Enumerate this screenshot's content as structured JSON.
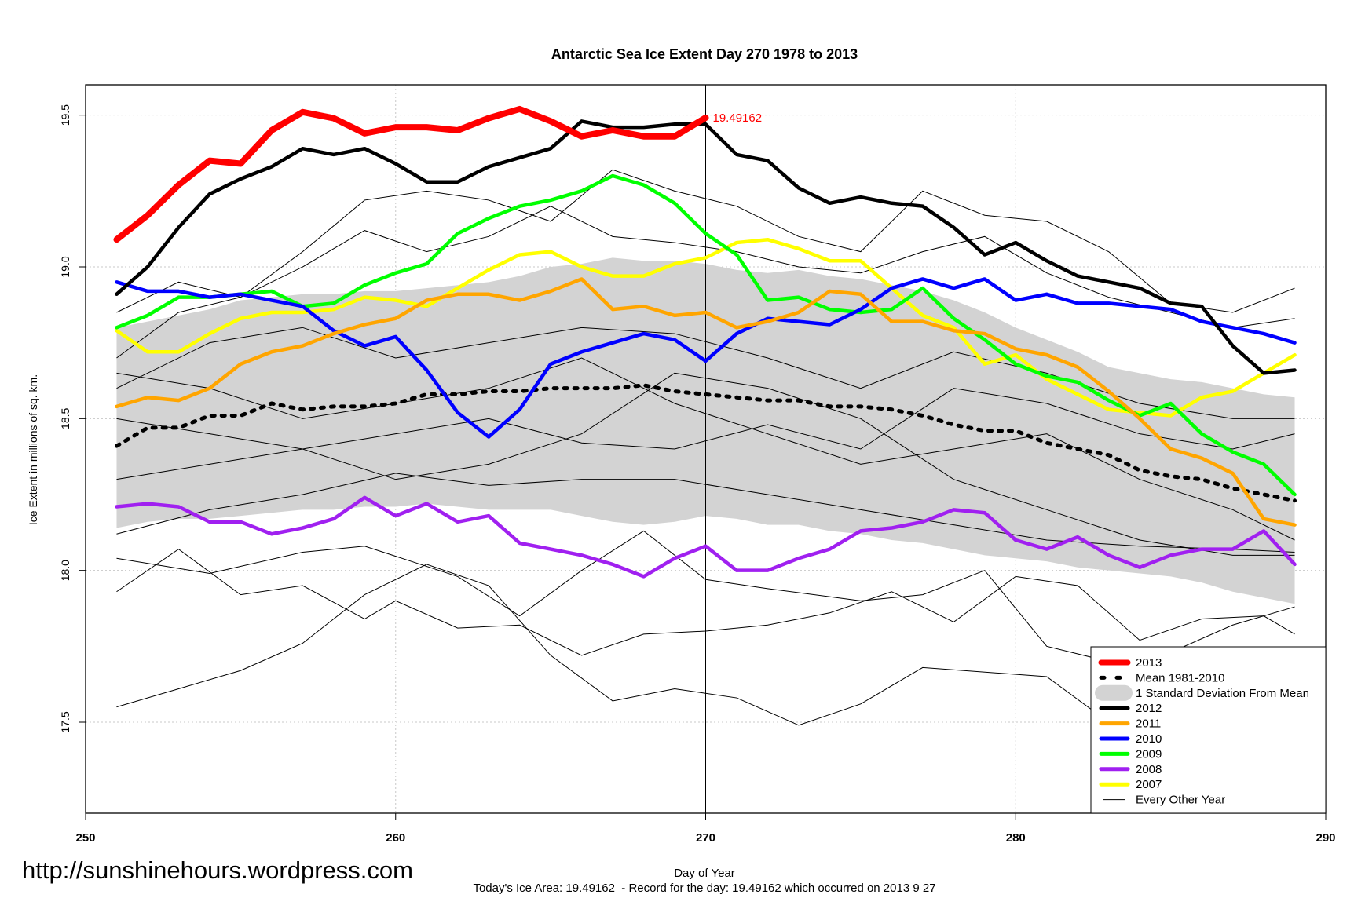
{
  "chart_data": {
    "type": "line",
    "title": "Antarctic Sea Ice Extent Day 270 1978 to 2013",
    "xlabel": "Day of Year",
    "ylabel": "Ice Extent in millions of sq. km.",
    "subtitle": "Today's Ice Area: 19.49162  - Record for the day: 19.49162 which occurred on 2013 9 27",
    "xlim": [
      250,
      290
    ],
    "ylim": [
      17.2,
      19.6
    ],
    "xticks": [
      250,
      260,
      270,
      280,
      290
    ],
    "xtick_labels": [
      "250",
      "260",
      "270",
      "280",
      "290"
    ],
    "yticks": [
      17.5,
      18.0,
      18.5,
      19.0,
      19.5
    ],
    "ytick_labels": [
      "17.5",
      "18.0",
      "18.5",
      "19.0",
      "19.5"
    ],
    "grid": true,
    "vertical_marker_day": 270,
    "annotation": {
      "x": 270,
      "y": 19.49162,
      "text": "19.49162",
      "color": "#ff0000"
    },
    "legend_placement": "bottom-right",
    "legend": [
      {
        "label": "2013",
        "color": "#ff0000",
        "style": "thick"
      },
      {
        "label": "Mean 1981-2010",
        "color": "#000000",
        "style": "dotted"
      },
      {
        "label": "1 Standard Deviation From Mean",
        "color": "#d3d3d3",
        "style": "band"
      },
      {
        "label": "2012",
        "color": "#000000",
        "style": "solid"
      },
      {
        "label": "2011",
        "color": "#ffa500",
        "style": "solid"
      },
      {
        "label": "2010",
        "color": "#0000ff",
        "style": "solid"
      },
      {
        "label": "2009",
        "color": "#00ff00",
        "style": "solid"
      },
      {
        "label": "2008",
        "color": "#a020f0",
        "style": "solid"
      },
      {
        "label": "2007",
        "color": "#ffff00",
        "style": "solid"
      },
      {
        "label": "Every Other Year",
        "color": "#000000",
        "style": "thin"
      }
    ],
    "days": [
      251,
      252,
      253,
      254,
      255,
      256,
      257,
      258,
      259,
      260,
      261,
      262,
      263,
      264,
      265,
      266,
      267,
      268,
      269,
      270,
      271,
      272,
      273,
      274,
      275,
      276,
      277,
      278,
      279,
      280,
      281,
      282,
      283,
      284,
      285,
      286,
      287,
      288,
      289
    ],
    "sd_band": {
      "upper": [
        18.8,
        18.82,
        18.84,
        18.86,
        18.89,
        18.9,
        18.91,
        18.91,
        18.92,
        18.92,
        18.93,
        18.94,
        18.95,
        18.97,
        19.0,
        19.01,
        19.03,
        19.02,
        19.02,
        19.01,
        18.99,
        18.98,
        18.99,
        18.97,
        18.96,
        18.94,
        18.92,
        18.89,
        18.85,
        18.8,
        18.76,
        18.72,
        18.67,
        18.65,
        18.63,
        18.62,
        18.6,
        18.58,
        18.57
      ],
      "lower": [
        18.14,
        18.16,
        18.17,
        18.17,
        18.18,
        18.19,
        18.2,
        18.2,
        18.21,
        18.21,
        18.22,
        18.21,
        18.2,
        18.2,
        18.2,
        18.18,
        18.16,
        18.15,
        18.16,
        18.18,
        18.17,
        18.15,
        18.15,
        18.13,
        18.12,
        18.1,
        18.09,
        18.07,
        18.05,
        18.04,
        18.03,
        18.01,
        18.0,
        17.99,
        17.98,
        17.96,
        17.93,
        17.91,
        17.89
      ]
    },
    "other_years": [
      {
        "x": [
          251,
          253,
          255,
          257,
          259,
          261,
          263,
          265,
          267,
          269,
          271,
          273,
          275,
          277,
          281,
          283,
          286,
          288,
          289
        ],
        "y": [
          17.55,
          17.61,
          17.67,
          17.76,
          17.92,
          18.02,
          17.95,
          17.72,
          17.57,
          17.61,
          17.58,
          17.49,
          17.56,
          17.68,
          17.65,
          17.5,
          17.38,
          17.29,
          17.3
        ]
      },
      {
        "x": [
          251,
          253,
          255,
          257,
          259,
          260,
          262,
          264,
          266,
          268,
          270,
          272,
          274,
          276,
          278,
          280,
          282,
          284,
          286,
          288,
          289
        ],
        "y": [
          17.93,
          18.07,
          17.92,
          17.95,
          17.84,
          17.9,
          17.81,
          17.82,
          17.72,
          17.79,
          17.8,
          17.82,
          17.86,
          17.93,
          17.83,
          17.98,
          17.95,
          17.77,
          17.84,
          17.85,
          17.79
        ]
      },
      {
        "x": [
          251,
          254,
          257,
          259,
          262,
          264,
          266,
          268,
          270,
          272,
          275,
          277,
          279,
          281,
          283,
          285,
          287,
          289
        ],
        "y": [
          18.04,
          17.99,
          18.06,
          18.08,
          17.98,
          17.85,
          18.0,
          18.13,
          17.97,
          17.94,
          17.9,
          17.92,
          18.0,
          17.75,
          17.7,
          17.73,
          17.82,
          17.88
        ]
      },
      {
        "x": [
          251,
          253,
          255,
          257,
          259,
          261,
          263,
          265,
          267,
          269,
          271,
          273,
          275,
          277,
          279,
          281,
          283,
          285,
          287,
          289
        ],
        "y": [
          18.7,
          18.85,
          18.9,
          19.05,
          19.22,
          19.25,
          19.22,
          19.15,
          19.32,
          19.25,
          19.2,
          19.1,
          19.05,
          19.25,
          19.17,
          19.15,
          19.05,
          18.88,
          18.85,
          18.93
        ]
      },
      {
        "x": [
          251,
          253,
          255,
          257,
          259,
          261,
          263,
          265,
          267,
          269,
          271,
          273,
          275,
          277,
          279,
          281,
          283,
          285,
          287,
          289
        ],
        "y": [
          18.85,
          18.95,
          18.9,
          19.0,
          19.12,
          19.05,
          19.1,
          19.2,
          19.1,
          19.08,
          19.05,
          19.0,
          18.98,
          19.05,
          19.1,
          18.98,
          18.9,
          18.85,
          18.8,
          18.83
        ]
      },
      {
        "x": [
          251,
          254,
          257,
          260,
          263,
          266,
          269,
          272,
          275,
          278,
          281,
          284,
          287,
          289
        ],
        "y": [
          18.65,
          18.6,
          18.5,
          18.55,
          18.6,
          18.7,
          18.55,
          18.45,
          18.35,
          18.4,
          18.45,
          18.3,
          18.2,
          18.1
        ]
      },
      {
        "x": [
          251,
          254,
          257,
          260,
          263,
          266,
          269,
          272,
          275,
          278,
          281,
          284,
          287,
          289
        ],
        "y": [
          18.3,
          18.35,
          18.4,
          18.3,
          18.35,
          18.45,
          18.65,
          18.6,
          18.5,
          18.3,
          18.2,
          18.1,
          18.05,
          18.05
        ]
      },
      {
        "x": [
          251,
          254,
          257,
          260,
          263,
          266,
          269,
          272,
          275,
          278,
          281,
          284,
          287,
          289
        ],
        "y": [
          18.12,
          18.2,
          18.25,
          18.32,
          18.28,
          18.3,
          18.3,
          18.25,
          18.2,
          18.15,
          18.1,
          18.08,
          18.07,
          18.06
        ]
      },
      {
        "x": [
          251,
          254,
          257,
          260,
          263,
          266,
          269,
          272,
          275,
          278,
          281,
          284,
          287,
          289
        ],
        "y": [
          18.5,
          18.45,
          18.4,
          18.45,
          18.5,
          18.42,
          18.4,
          18.48,
          18.4,
          18.6,
          18.55,
          18.45,
          18.4,
          18.45
        ]
      },
      {
        "x": [
          251,
          254,
          257,
          260,
          263,
          266,
          269,
          272,
          275,
          278,
          281,
          284,
          287,
          289
        ],
        "y": [
          18.6,
          18.75,
          18.8,
          18.7,
          18.75,
          18.8,
          18.78,
          18.7,
          18.6,
          18.72,
          18.65,
          18.55,
          18.5,
          18.5
        ]
      }
    ],
    "series": [
      {
        "name": "Mean 1981-2010",
        "color": "#000000",
        "style": "dotted",
        "values": [
          18.41,
          18.47,
          18.47,
          18.51,
          18.51,
          18.55,
          18.53,
          18.54,
          18.54,
          18.55,
          18.58,
          18.58,
          18.59,
          18.59,
          18.6,
          18.6,
          18.6,
          18.61,
          18.59,
          18.58,
          18.57,
          18.56,
          18.56,
          18.54,
          18.54,
          18.53,
          18.51,
          18.48,
          18.46,
          18.46,
          18.42,
          18.4,
          18.38,
          18.33,
          18.31,
          18.3,
          18.27,
          18.25,
          18.23
        ]
      },
      {
        "name": "2007",
        "color": "#ffff00",
        "style": "solid",
        "values": [
          18.79,
          18.72,
          18.72,
          18.78,
          18.83,
          18.85,
          18.85,
          18.86,
          18.9,
          18.89,
          18.87,
          18.93,
          18.99,
          19.04,
          19.05,
          19.0,
          18.97,
          18.97,
          19.01,
          19.03,
          19.08,
          19.09,
          19.06,
          19.02,
          19.02,
          18.93,
          18.84,
          18.8,
          18.68,
          18.71,
          18.63,
          18.58,
          18.53,
          18.52,
          18.51,
          18.57,
          18.59,
          18.65,
          18.71
        ]
      },
      {
        "name": "2008",
        "color": "#a020f0",
        "style": "solid",
        "values": [
          18.21,
          18.22,
          18.21,
          18.16,
          18.16,
          18.12,
          18.14,
          18.17,
          18.24,
          18.18,
          18.22,
          18.16,
          18.18,
          18.09,
          18.07,
          18.05,
          18.02,
          17.98,
          18.04,
          18.08,
          18.0,
          18.0,
          18.04,
          18.07,
          18.13,
          18.14,
          18.16,
          18.2,
          18.19,
          18.1,
          18.07,
          18.11,
          18.05,
          18.01,
          18.05,
          18.07,
          18.07,
          18.13,
          18.02
        ]
      },
      {
        "name": "2009",
        "color": "#00ff00",
        "style": "solid",
        "values": [
          18.8,
          18.84,
          18.9,
          18.9,
          18.91,
          18.92,
          18.87,
          18.88,
          18.94,
          18.98,
          19.01,
          19.11,
          19.16,
          19.2,
          19.22,
          19.25,
          19.3,
          19.27,
          19.21,
          19.11,
          19.04,
          18.89,
          18.9,
          18.86,
          18.85,
          18.86,
          18.93,
          18.83,
          18.76,
          18.68,
          18.64,
          18.62,
          18.56,
          18.51,
          18.55,
          18.45,
          18.39,
          18.35,
          18.25
        ]
      },
      {
        "name": "2010",
        "color": "#0000ff",
        "style": "solid",
        "values": [
          18.95,
          18.92,
          18.92,
          18.9,
          18.91,
          18.89,
          18.87,
          18.79,
          18.74,
          18.77,
          18.66,
          18.52,
          18.44,
          18.53,
          18.68,
          18.72,
          18.75,
          18.78,
          18.76,
          18.69,
          18.78,
          18.83,
          18.82,
          18.81,
          18.86,
          18.93,
          18.96,
          18.93,
          18.96,
          18.89,
          18.91,
          18.88,
          18.88,
          18.87,
          18.86,
          18.82,
          18.8,
          18.78,
          18.75
        ]
      },
      {
        "name": "2011",
        "color": "#ffa500",
        "style": "solid",
        "values": [
          18.54,
          18.57,
          18.56,
          18.6,
          18.68,
          18.72,
          18.74,
          18.78,
          18.81,
          18.83,
          18.89,
          18.91,
          18.91,
          18.89,
          18.92,
          18.96,
          18.86,
          18.87,
          18.84,
          18.85,
          18.8,
          18.82,
          18.85,
          18.92,
          18.91,
          18.82,
          18.82,
          18.79,
          18.78,
          18.73,
          18.71,
          18.67,
          18.59,
          18.5,
          18.4,
          18.37,
          18.32,
          18.17,
          18.15
        ]
      },
      {
        "name": "2012",
        "color": "#000000",
        "style": "solid",
        "values": [
          18.91,
          19.0,
          19.13,
          19.24,
          19.29,
          19.33,
          19.39,
          19.37,
          19.39,
          19.34,
          19.28,
          19.28,
          19.33,
          19.36,
          19.39,
          19.48,
          19.46,
          19.46,
          19.47,
          19.47,
          19.37,
          19.35,
          19.26,
          19.21,
          19.23,
          19.21,
          19.2,
          19.13,
          19.04,
          19.08,
          19.02,
          18.97,
          18.95,
          18.93,
          18.88,
          18.87,
          18.74,
          18.65,
          18.66
        ]
      },
      {
        "name": "2013",
        "color": "#ff0000",
        "style": "thick",
        "values": [
          19.09,
          19.17,
          19.27,
          19.35,
          19.34,
          19.45,
          19.51,
          19.49,
          19.44,
          19.46,
          19.46,
          19.45,
          19.49,
          19.52,
          19.48,
          19.43,
          19.45,
          19.43,
          19.43,
          19.49162
        ]
      }
    ]
  },
  "watermark": "http://sunshinehours.wordpress.com"
}
